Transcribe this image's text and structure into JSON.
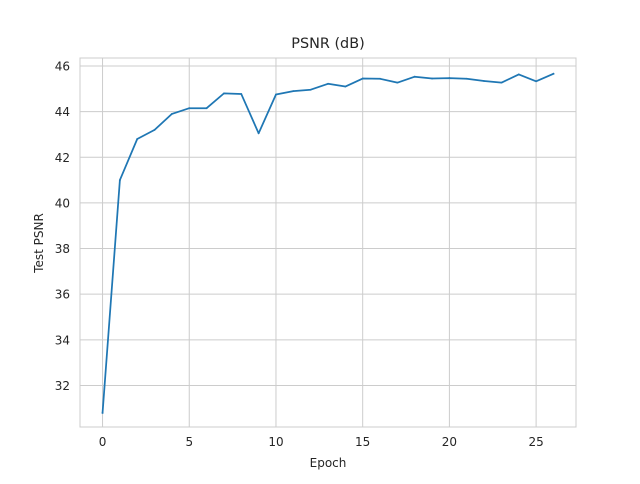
{
  "chart_data": {
    "type": "line",
    "title": "PSNR (dB)",
    "xlabel": "Epoch",
    "ylabel": "Test PSNR",
    "xlim": [
      -1.3,
      27.3
    ],
    "ylim": [
      30.18,
      46.35
    ],
    "x_ticks": [
      0,
      5,
      10,
      15,
      20,
      25
    ],
    "y_ticks": [
      32,
      34,
      36,
      38,
      40,
      42,
      44,
      46
    ],
    "grid": true,
    "legend": "none",
    "series": [
      {
        "color": "#1f77b4",
        "x": [
          0,
          1,
          2,
          3,
          4,
          5,
          6,
          7,
          8,
          9,
          10,
          11,
          12,
          13,
          14,
          15,
          16,
          17,
          18,
          19,
          20,
          21,
          22,
          23,
          24,
          25,
          26
        ],
        "values": [
          30.8,
          41.0,
          42.8,
          43.2,
          43.9,
          44.15,
          44.15,
          44.8,
          44.77,
          43.05,
          44.75,
          44.9,
          44.96,
          45.22,
          45.1,
          45.45,
          45.44,
          45.27,
          45.53,
          45.45,
          45.47,
          45.44,
          45.34,
          45.27,
          45.63,
          45.33,
          45.66
        ]
      }
    ]
  }
}
